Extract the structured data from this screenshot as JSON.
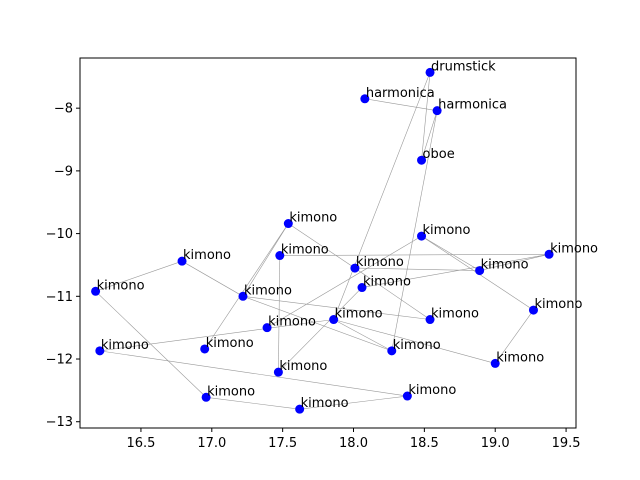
{
  "chart_data": {
    "type": "scatter",
    "title": "",
    "xlabel": "",
    "ylabel": "",
    "xlim": [
      16.07,
      19.57
    ],
    "ylim": [
      -13.1,
      -7.2
    ],
    "xticks": [
      16.5,
      17.0,
      17.5,
      18.0,
      18.5,
      19.0,
      19.5
    ],
    "xtick_labels": [
      "16.5",
      "17.0",
      "17.5",
      "18.0",
      "18.5",
      "19.0",
      "19.5"
    ],
    "yticks": [
      -13,
      -12,
      -11,
      -10,
      -9,
      -8
    ],
    "ytick_labels": [
      "−13",
      "−12",
      "−11",
      "−10",
      "−9",
      "−8"
    ],
    "grid": false,
    "marker_color": "#0000ff",
    "edge_color": "#999999",
    "points": [
      {
        "label": "drumstick",
        "x": 18.54,
        "y": -7.43
      },
      {
        "label": "harmonica",
        "x": 18.08,
        "y": -7.85
      },
      {
        "label": "harmonica",
        "x": 18.59,
        "y": -8.04
      },
      {
        "label": "oboe",
        "x": 18.48,
        "y": -8.83
      },
      {
        "label": "kimono",
        "x": 17.54,
        "y": -9.84
      },
      {
        "label": "kimono",
        "x": 18.48,
        "y": -10.04
      },
      {
        "label": "kimono",
        "x": 17.48,
        "y": -10.35
      },
      {
        "label": "kimono",
        "x": 19.38,
        "y": -10.33
      },
      {
        "label": "kimono",
        "x": 16.79,
        "y": -10.44
      },
      {
        "label": "kimono",
        "x": 18.01,
        "y": -10.55
      },
      {
        "label": "kimono",
        "x": 18.89,
        "y": -10.59
      },
      {
        "label": "kimono",
        "x": 18.06,
        "y": -10.86
      },
      {
        "label": "kimono",
        "x": 16.18,
        "y": -10.92
      },
      {
        "label": "kimono",
        "x": 17.22,
        "y": -11.0
      },
      {
        "label": "kimono",
        "x": 19.27,
        "y": -11.22
      },
      {
        "label": "kimono",
        "x": 17.86,
        "y": -11.37
      },
      {
        "label": "kimono",
        "x": 18.54,
        "y": -11.37
      },
      {
        "label": "kimono",
        "x": 17.39,
        "y": -11.5
      },
      {
        "label": "kimono",
        "x": 16.95,
        "y": -11.84
      },
      {
        "label": "kimono",
        "x": 16.21,
        "y": -11.87
      },
      {
        "label": "kimono",
        "x": 18.27,
        "y": -11.87
      },
      {
        "label": "kimono",
        "x": 19.0,
        "y": -12.07
      },
      {
        "label": "kimono",
        "x": 17.47,
        "y": -12.21
      },
      {
        "label": "kimono",
        "x": 16.96,
        "y": -12.61
      },
      {
        "label": "kimono",
        "x": 18.38,
        "y": -12.59
      },
      {
        "label": "kimono",
        "x": 17.62,
        "y": -12.8
      }
    ],
    "edges": [
      [
        1,
        2
      ],
      [
        2,
        3
      ],
      [
        2,
        20
      ],
      [
        0,
        3
      ],
      [
        0,
        15
      ],
      [
        4,
        13
      ],
      [
        4,
        18
      ],
      [
        4,
        9
      ],
      [
        5,
        10
      ],
      [
        5,
        14
      ],
      [
        5,
        17
      ],
      [
        6,
        22
      ],
      [
        6,
        7
      ],
      [
        7,
        10
      ],
      [
        8,
        12
      ],
      [
        8,
        13
      ],
      [
        9,
        10
      ],
      [
        9,
        16
      ],
      [
        11,
        22
      ],
      [
        11,
        7
      ],
      [
        12,
        23
      ],
      [
        13,
        20
      ],
      [
        13,
        16
      ],
      [
        14,
        21
      ],
      [
        15,
        20
      ],
      [
        15,
        21
      ],
      [
        19,
        24
      ],
      [
        23,
        25
      ],
      [
        25,
        24
      ],
      [
        19,
        15
      ]
    ]
  }
}
